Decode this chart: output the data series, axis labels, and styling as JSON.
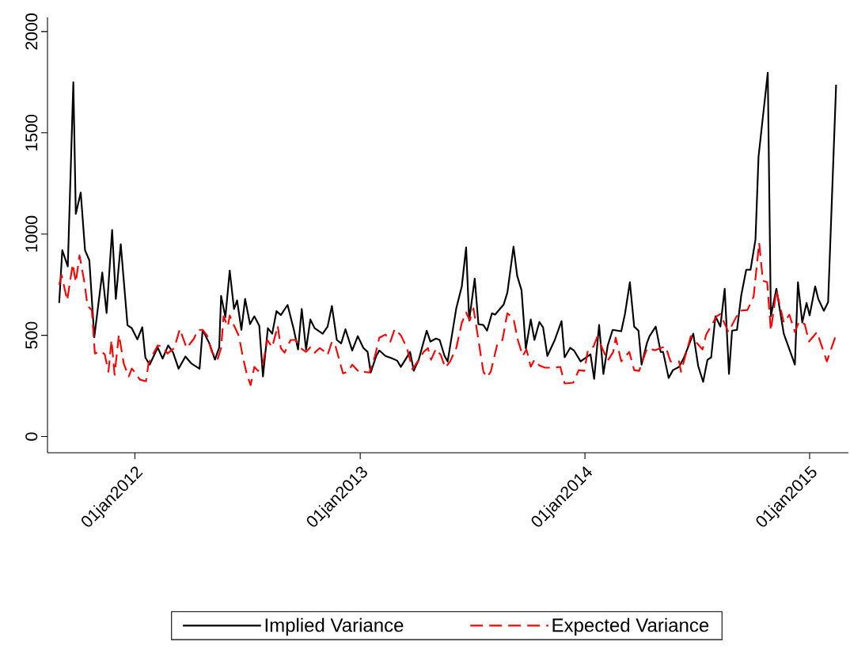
{
  "chart_data": {
    "type": "line",
    "xlim": [
      "2011-08-12",
      "2015-03-05"
    ],
    "ylim": [
      -80,
      2070
    ],
    "xticks": [
      {
        "value": "2012-01-01",
        "label": "01jan2012"
      },
      {
        "value": "2013-01-01",
        "label": "01jan2013"
      },
      {
        "value": "2014-01-01",
        "label": "01jan2014"
      },
      {
        "value": "2015-01-01",
        "label": "01jan2015"
      }
    ],
    "yticks": [
      0,
      500,
      1000,
      1500,
      2000
    ],
    "legend": "bottom",
    "marker": "none",
    "series": [
      {
        "name": "Implied Variance",
        "color": "#000000",
        "line_style": "solid",
        "x": [
          "2011-08-31",
          "2011-09-05",
          "2011-09-14",
          "2011-09-23",
          "2011-09-27",
          "2011-10-05",
          "2011-10-12",
          "2011-10-19",
          "2011-10-27",
          "2011-11-09",
          "2011-11-16",
          "2011-11-25",
          "2011-12-01",
          "2011-12-09",
          "2011-12-20",
          "2011-12-27",
          "2012-01-05",
          "2012-01-13",
          "2012-01-18",
          "2012-01-25",
          "2012-02-07",
          "2012-02-15",
          "2012-02-24",
          "2012-03-03",
          "2012-03-12",
          "2012-03-23",
          "2012-04-02",
          "2012-04-15",
          "2012-04-20",
          "2012-05-01",
          "2012-05-10",
          "2012-05-17",
          "2012-05-20",
          "2012-05-27",
          "2012-06-03",
          "2012-06-10",
          "2012-06-15",
          "2012-06-22",
          "2012-06-28",
          "2012-07-06",
          "2012-07-13",
          "2012-07-21",
          "2012-07-27",
          "2012-08-04",
          "2012-08-11",
          "2012-08-18",
          "2012-08-25",
          "2012-09-05",
          "2012-09-15",
          "2012-09-22",
          "2012-09-28",
          "2012-10-05",
          "2012-10-12",
          "2012-10-19",
          "2012-11-01",
          "2012-11-09",
          "2012-11-16",
          "2012-11-24",
          "2012-12-01",
          "2012-12-08",
          "2012-12-19",
          "2012-12-28",
          "2013-01-06",
          "2013-01-13",
          "2013-01-18",
          "2013-01-27",
          "2013-02-01",
          "2013-02-11",
          "2013-02-21",
          "2013-03-02",
          "2013-03-08",
          "2013-03-23",
          "2013-03-29",
          "2013-04-06",
          "2013-04-19",
          "2013-04-25",
          "2013-05-04",
          "2013-05-10",
          "2013-05-18",
          "2013-05-23",
          "2013-06-06",
          "2013-06-15",
          "2013-06-22",
          "2013-06-27",
          "2013-07-06",
          "2013-07-12",
          "2013-07-20",
          "2013-07-26",
          "2013-08-03",
          "2013-08-08",
          "2013-08-22",
          "2013-08-28",
          "2013-09-07",
          "2013-09-13",
          "2013-09-20",
          "2013-09-27",
          "2013-10-05",
          "2013-10-11",
          "2013-10-19",
          "2013-10-25",
          "2013-11-01",
          "2013-11-13",
          "2013-11-24",
          "2013-11-29",
          "2013-12-08",
          "2013-12-14",
          "2013-12-25",
          "2014-01-10",
          "2014-01-16",
          "2014-01-24",
          "2014-01-31",
          "2014-02-07",
          "2014-02-15",
          "2014-03-01",
          "2014-03-07",
          "2014-03-15",
          "2014-03-22",
          "2014-03-29",
          "2014-04-03",
          "2014-04-12",
          "2014-04-16",
          "2014-04-26",
          "2014-05-04",
          "2014-05-08",
          "2014-05-17",
          "2014-05-24",
          "2014-06-03",
          "2014-06-11",
          "2014-06-26",
          "2014-07-04",
          "2014-07-12",
          "2014-07-19",
          "2014-07-25",
          "2014-08-01",
          "2014-08-09",
          "2014-08-16",
          "2014-08-23",
          "2014-08-28",
          "2014-09-05",
          "2014-09-12",
          "2014-09-20",
          "2014-09-27",
          "2014-10-05",
          "2014-10-10",
          "2014-10-25",
          "2014-10-30",
          "2014-11-08",
          "2014-11-20",
          "2014-12-08",
          "2014-12-13",
          "2014-12-20",
          "2014-12-27",
          "2015-01-01",
          "2015-01-10",
          "2015-01-15",
          "2015-01-24",
          "2015-01-31",
          "2015-02-13"
        ],
        "values": [
          660,
          920,
          840,
          1750,
          1100,
          1205,
          920,
          870,
          490,
          810,
          610,
          1020,
          680,
          950,
          550,
          535,
          480,
          540,
          390,
          355,
          440,
          385,
          450,
          415,
          335,
          395,
          360,
          335,
          527,
          460,
          380,
          440,
          695,
          590,
          820,
          630,
          672,
          527,
          680,
          555,
          594,
          547,
          297,
          535,
          508,
          620,
          600,
          650,
          530,
          430,
          630,
          430,
          578,
          535,
          508,
          543,
          645,
          477,
          460,
          530,
          425,
          496,
          438,
          418,
          316,
          398,
          425,
          398,
          387,
          375,
          344,
          418,
          325,
          379,
          523,
          469,
          484,
          477,
          398,
          371,
          633,
          742,
          934,
          574,
          780,
          555,
          551,
          523,
          609,
          602,
          652,
          711,
          938,
          793,
          723,
          434,
          578,
          477,
          566,
          539,
          398,
          477,
          570,
          391,
          438,
          426,
          371,
          406,
          285,
          551,
          309,
          449,
          527,
          520,
          605,
          762,
          543,
          523,
          355,
          465,
          496,
          543,
          418,
          418,
          289,
          328,
          344,
          391,
          508,
          348,
          270,
          379,
          391,
          594,
          543,
          730,
          309,
          523,
          527,
          699,
          824,
          824,
          973,
          1383,
          1797,
          594,
          730,
          508,
          355,
          762,
          563,
          660,
          598,
          742,
          680,
          621,
          664,
          1738
        ]
      },
      {
        "name": "Expected Variance",
        "color": "#ff0000",
        "line_style": "dashed",
        "x": [
          "2011-08-31",
          "2011-09-04",
          "2011-09-13",
          "2011-09-22",
          "2011-09-27",
          "2011-10-03",
          "2011-10-11",
          "2011-10-16",
          "2011-10-23",
          "2011-10-28",
          "2011-11-06",
          "2011-11-13",
          "2011-11-19",
          "2011-11-24",
          "2011-11-29",
          "2011-12-06",
          "2011-12-14",
          "2011-12-22",
          "2011-12-27",
          "2012-01-02",
          "2012-01-09",
          "2012-01-19",
          "2012-01-23",
          "2012-01-29",
          "2012-02-07",
          "2012-02-15",
          "2012-02-23",
          "2012-03-05",
          "2012-03-14",
          "2012-03-25",
          "2012-04-06",
          "2012-04-12",
          "2012-04-20",
          "2012-04-27",
          "2012-05-05",
          "2012-05-14",
          "2012-05-20",
          "2012-05-24",
          "2012-05-31",
          "2012-06-03",
          "2012-06-09",
          "2012-06-18",
          "2012-06-24",
          "2012-07-01",
          "2012-07-07",
          "2012-07-13",
          "2012-07-19",
          "2012-07-27",
          "2012-08-03",
          "2012-08-11",
          "2012-08-20",
          "2012-08-25",
          "2012-08-31",
          "2012-09-10",
          "2012-09-18",
          "2012-09-26",
          "2012-10-05",
          "2012-10-12",
          "2012-10-19",
          "2012-10-27",
          "2012-11-03",
          "2012-11-09",
          "2012-11-16",
          "2012-11-22",
          "2012-12-04",
          "2012-12-12",
          "2012-12-19",
          "2012-12-31",
          "2013-01-06",
          "2013-01-16",
          "2013-01-25",
          "2013-02-01",
          "2013-02-11",
          "2013-02-19",
          "2013-02-26",
          "2013-03-08",
          "2013-03-18",
          "2013-03-27",
          "2013-04-06",
          "2013-04-14",
          "2013-04-21",
          "2013-04-26",
          "2013-05-04",
          "2013-05-12",
          "2013-05-19",
          "2013-05-27",
          "2013-06-06",
          "2013-06-15",
          "2013-06-22",
          "2013-06-28",
          "2013-07-04",
          "2013-07-12",
          "2013-07-20",
          "2013-07-26",
          "2013-08-01",
          "2013-08-12",
          "2013-08-20",
          "2013-08-28",
          "2013-09-07",
          "2013-09-14",
          "2013-09-22",
          "2013-09-28",
          "2013-10-05",
          "2013-10-11",
          "2013-10-19",
          "2013-10-28",
          "2013-11-09",
          "2013-11-22",
          "2013-11-29",
          "2013-12-13",
          "2013-12-22",
          "2013-12-31",
          "2014-01-06",
          "2014-01-15",
          "2014-01-21",
          "2014-01-29",
          "2014-02-07",
          "2014-02-16",
          "2014-02-20",
          "2014-03-01",
          "2014-03-14",
          "2014-03-22",
          "2014-03-30",
          "2014-04-12",
          "2014-04-25",
          "2014-05-04",
          "2014-05-12",
          "2014-05-20",
          "2014-06-03",
          "2014-06-06",
          "2014-06-22",
          "2014-07-11",
          "2014-07-17",
          "2014-08-03",
          "2014-08-09",
          "2014-08-22",
          "2014-09-09",
          "2014-09-22",
          "2014-10-02",
          "2014-10-11",
          "2014-10-17",
          "2014-10-24",
          "2014-10-30",
          "2014-11-08",
          "2014-11-20",
          "2014-11-29",
          "2014-12-08",
          "2014-12-15",
          "2014-12-24",
          "2014-12-31",
          "2015-01-13",
          "2015-01-29",
          "2015-02-13"
        ],
        "values": [
          750,
          797,
          672,
          852,
          762,
          895,
          762,
          645,
          625,
          410,
          422,
          406,
          320,
          477,
          305,
          504,
          359,
          297,
          336,
          312,
          281,
          273,
          359,
          398,
          450,
          445,
          410,
          437,
          531,
          437,
          484,
          527,
          527,
          500,
          418,
          379,
          437,
          594,
          543,
          598,
          555,
          496,
          398,
          305,
          254,
          344,
          324,
          359,
          477,
          441,
          547,
          437,
          414,
          477,
          477,
          437,
          418,
          441,
          414,
          437,
          422,
          402,
          469,
          445,
          312,
          320,
          355,
          316,
          320,
          316,
          398,
          488,
          504,
          469,
          531,
          500,
          437,
          332,
          379,
          418,
          437,
          379,
          433,
          402,
          340,
          371,
          437,
          562,
          613,
          574,
          633,
          477,
          320,
          293,
          320,
          461,
          477,
          609,
          582,
          477,
          398,
          430,
          344,
          379,
          351,
          340,
          340,
          344,
          262,
          266,
          328,
          324,
          430,
          445,
          492,
          437,
          375,
          418,
          488,
          371,
          418,
          328,
          324,
          437,
          426,
          437,
          445,
          371,
          371,
          320,
          496,
          430,
          504,
          594,
          605,
          516,
          621,
          625,
          691,
          957,
          770,
          762,
          523,
          723,
          563,
          602,
          516,
          570,
          555,
          469,
          516,
          371,
          504
        ]
      }
    ]
  }
}
